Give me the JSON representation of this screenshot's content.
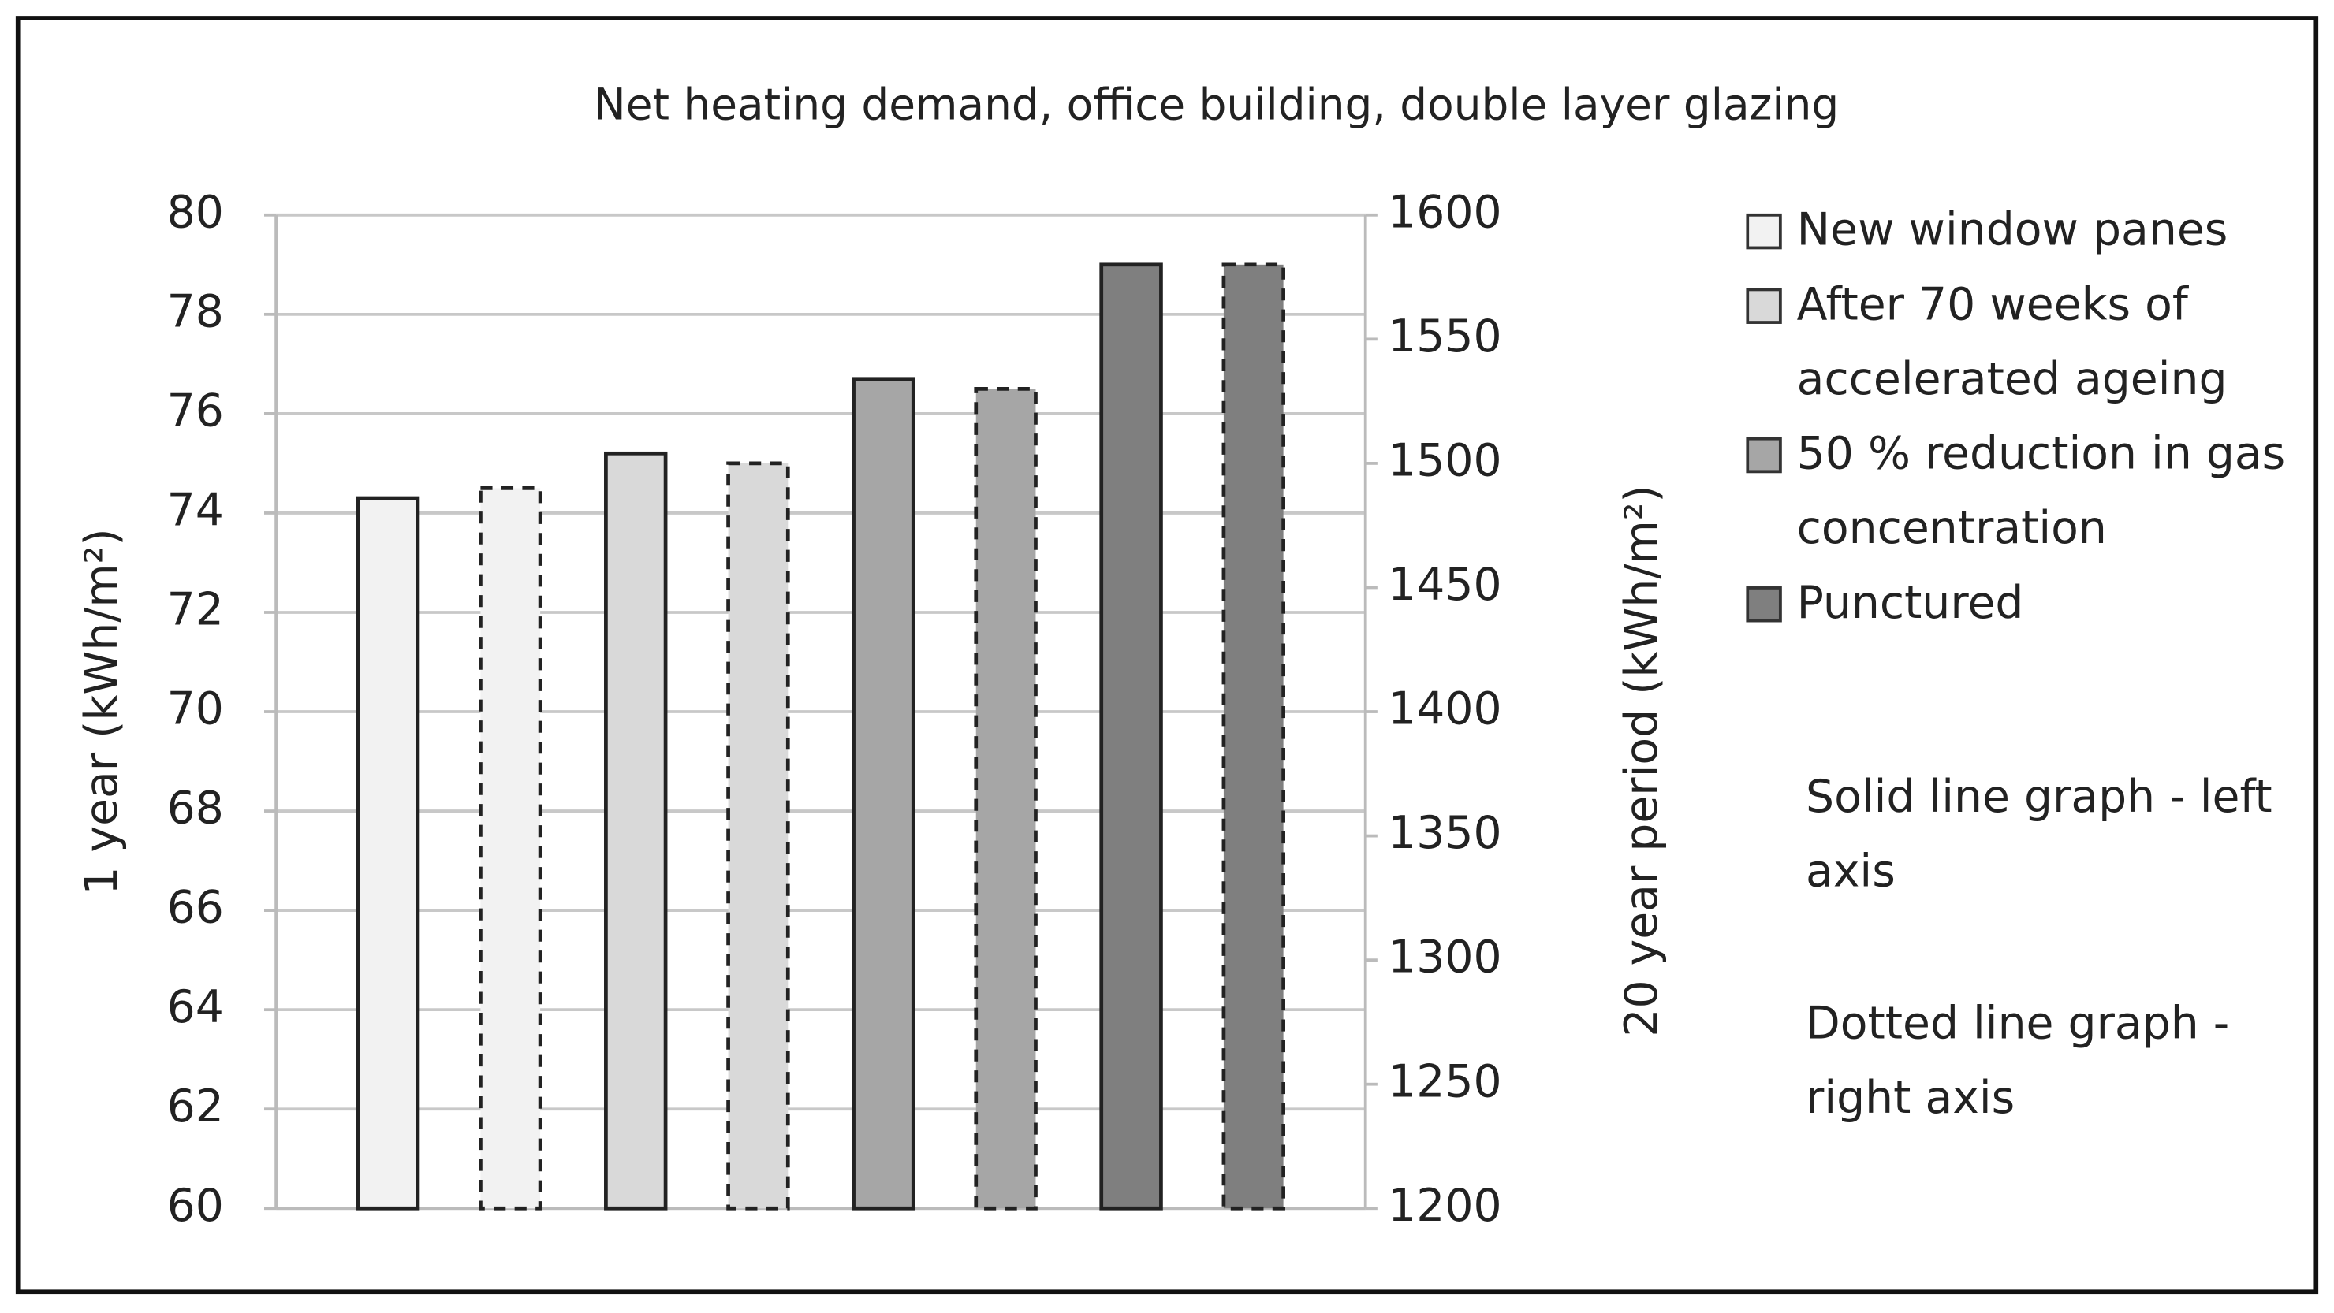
{
  "chart_data": {
    "type": "bar",
    "title": "Net heating demand, office building, double layer glazing",
    "ylabel": "1 year (kWh/m²)",
    "y2label": "20 year period (kWh/m²)",
    "series": [
      {
        "name": "New window panes",
        "color": "#f2f2f2",
        "values": [
          74.3
        ],
        "y2values": [
          1490
        ]
      },
      {
        "name": "After 70 weeks of accelerated ageing",
        "color": "#d9d9d9",
        "values": [
          75.2
        ],
        "y2values": [
          1500
        ]
      },
      {
        "name": "50 % reduction in gas concentration",
        "color": "#a6a6a6",
        "values": [
          76.7
        ],
        "y2values": [
          1530
        ]
      },
      {
        "name": "Punctured",
        "color": "#7f7f7f",
        "values": [
          79.0
        ],
        "y2values": [
          1580
        ]
      }
    ],
    "notes": [
      "Solid line graph - left axis",
      "Dotted line graph - right axis"
    ],
    "ylim": [
      60,
      80
    ],
    "yticks": [
      60,
      62,
      64,
      66,
      68,
      70,
      72,
      74,
      76,
      78,
      80
    ],
    "y2lim": [
      1200,
      1600
    ],
    "y2ticks": [
      1200,
      1250,
      1300,
      1350,
      1400,
      1450,
      1500,
      1550,
      1600
    ],
    "grid": true
  }
}
